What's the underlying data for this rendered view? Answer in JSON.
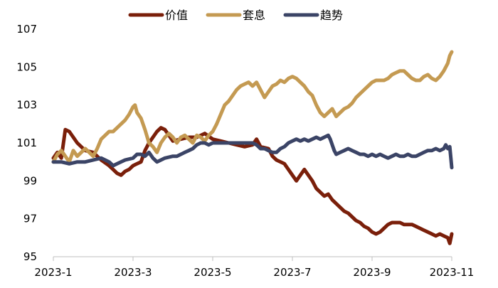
{
  "chart_data": {
    "type": "line",
    "title": "",
    "xlabel": "",
    "ylabel": "",
    "ylim": [
      95,
      107
    ],
    "yticks": [
      95,
      97,
      99,
      101,
      103,
      105,
      107
    ],
    "x_range": [
      0,
      10
    ],
    "x_ticks": [
      {
        "x": 0,
        "label": "2023-1"
      },
      {
        "x": 2,
        "label": "2023-3"
      },
      {
        "x": 4,
        "label": "2023-5"
      },
      {
        "x": 6,
        "label": "2023-7"
      },
      {
        "x": 8,
        "label": "2023-9"
      },
      {
        "x": 10,
        "label": "2023-11"
      }
    ],
    "legend_position": "top-center",
    "grid": false,
    "series": [
      {
        "name": "价值",
        "color": "#7a1f0a",
        "points": [
          [
            0,
            100.2
          ],
          [
            0.1,
            100.5
          ],
          [
            0.2,
            100.2
          ],
          [
            0.3,
            101.7
          ],
          [
            0.4,
            101.6
          ],
          [
            0.5,
            101.3
          ],
          [
            0.6,
            101.0
          ],
          [
            0.8,
            100.6
          ],
          [
            1.0,
            100.5
          ],
          [
            1.2,
            100.1
          ],
          [
            1.4,
            99.8
          ],
          [
            1.5,
            99.6
          ],
          [
            1.6,
            99.4
          ],
          [
            1.7,
            99.3
          ],
          [
            1.8,
            99.5
          ],
          [
            1.9,
            99.6
          ],
          [
            2.0,
            99.8
          ],
          [
            2.1,
            99.9
          ],
          [
            2.2,
            100.0
          ],
          [
            2.3,
            100.6
          ],
          [
            2.4,
            101.0
          ],
          [
            2.5,
            101.3
          ],
          [
            2.6,
            101.6
          ],
          [
            2.7,
            101.8
          ],
          [
            2.8,
            101.7
          ],
          [
            2.9,
            101.4
          ],
          [
            3.0,
            101.1
          ],
          [
            3.2,
            101.2
          ],
          [
            3.4,
            101.3
          ],
          [
            3.6,
            101.3
          ],
          [
            3.8,
            101.5
          ],
          [
            4.0,
            101.2
          ],
          [
            4.2,
            101.1
          ],
          [
            4.4,
            101.0
          ],
          [
            4.6,
            100.9
          ],
          [
            4.8,
            100.8
          ],
          [
            5.0,
            100.9
          ],
          [
            5.1,
            101.2
          ],
          [
            5.2,
            100.8
          ],
          [
            5.4,
            100.7
          ],
          [
            5.5,
            100.3
          ],
          [
            5.6,
            100.1
          ],
          [
            5.8,
            99.9
          ],
          [
            5.9,
            99.6
          ],
          [
            6.0,
            99.3
          ],
          [
            6.1,
            99.0
          ],
          [
            6.2,
            99.3
          ],
          [
            6.3,
            99.6
          ],
          [
            6.4,
            99.3
          ],
          [
            6.5,
            99.0
          ],
          [
            6.6,
            98.6
          ],
          [
            6.7,
            98.4
          ],
          [
            6.8,
            98.2
          ],
          [
            6.9,
            98.3
          ],
          [
            7.0,
            98.0
          ],
          [
            7.1,
            97.8
          ],
          [
            7.2,
            97.6
          ],
          [
            7.3,
            97.4
          ],
          [
            7.4,
            97.3
          ],
          [
            7.5,
            97.1
          ],
          [
            7.6,
            96.9
          ],
          [
            7.7,
            96.8
          ],
          [
            7.8,
            96.6
          ],
          [
            7.9,
            96.5
          ],
          [
            8.0,
            96.3
          ],
          [
            8.1,
            96.2
          ],
          [
            8.2,
            96.3
          ],
          [
            8.3,
            96.5
          ],
          [
            8.4,
            96.7
          ],
          [
            8.5,
            96.8
          ],
          [
            8.6,
            96.8
          ],
          [
            8.7,
            96.8
          ],
          [
            8.8,
            96.7
          ],
          [
            8.9,
            96.7
          ],
          [
            9.0,
            96.7
          ],
          [
            9.1,
            96.6
          ],
          [
            9.2,
            96.5
          ],
          [
            9.3,
            96.4
          ],
          [
            9.4,
            96.3
          ],
          [
            9.5,
            96.2
          ],
          [
            9.6,
            96.1
          ],
          [
            9.7,
            96.2
          ],
          [
            9.8,
            96.1
          ],
          [
            9.9,
            96.0
          ],
          [
            9.95,
            95.7
          ],
          [
            10.0,
            96.2
          ]
        ]
      },
      {
        "name": "套息",
        "color": "#c49a52",
        "points": [
          [
            0,
            100.0
          ],
          [
            0.1,
            100.4
          ],
          [
            0.2,
            100.6
          ],
          [
            0.3,
            100.3
          ],
          [
            0.4,
            100.0
          ],
          [
            0.5,
            100.6
          ],
          [
            0.6,
            100.3
          ],
          [
            0.7,
            100.5
          ],
          [
            0.8,
            100.7
          ],
          [
            0.9,
            100.5
          ],
          [
            1.0,
            100.3
          ],
          [
            1.1,
            100.7
          ],
          [
            1.2,
            101.2
          ],
          [
            1.3,
            101.4
          ],
          [
            1.4,
            101.6
          ],
          [
            1.5,
            101.6
          ],
          [
            1.6,
            101.8
          ],
          [
            1.7,
            102.0
          ],
          [
            1.8,
            102.2
          ],
          [
            1.9,
            102.5
          ],
          [
            2.0,
            102.9
          ],
          [
            2.05,
            103.0
          ],
          [
            2.1,
            102.6
          ],
          [
            2.2,
            102.3
          ],
          [
            2.3,
            101.7
          ],
          [
            2.4,
            101.0
          ],
          [
            2.5,
            100.8
          ],
          [
            2.6,
            100.5
          ],
          [
            2.7,
            101.0
          ],
          [
            2.8,
            101.3
          ],
          [
            2.9,
            101.5
          ],
          [
            3.0,
            101.3
          ],
          [
            3.1,
            101.0
          ],
          [
            3.2,
            101.3
          ],
          [
            3.3,
            101.4
          ],
          [
            3.4,
            101.2
          ],
          [
            3.5,
            101.0
          ],
          [
            3.6,
            101.4
          ],
          [
            3.7,
            101.3
          ],
          [
            3.8,
            101.1
          ],
          [
            3.9,
            101.4
          ],
          [
            4.0,
            101.6
          ],
          [
            4.1,
            102.0
          ],
          [
            4.2,
            102.5
          ],
          [
            4.3,
            103.0
          ],
          [
            4.4,
            103.2
          ],
          [
            4.5,
            103.5
          ],
          [
            4.6,
            103.8
          ],
          [
            4.7,
            104.0
          ],
          [
            4.8,
            104.1
          ],
          [
            4.9,
            104.2
          ],
          [
            5.0,
            104.0
          ],
          [
            5.1,
            104.2
          ],
          [
            5.2,
            103.8
          ],
          [
            5.3,
            103.4
          ],
          [
            5.4,
            103.7
          ],
          [
            5.5,
            104.0
          ],
          [
            5.6,
            104.1
          ],
          [
            5.7,
            104.3
          ],
          [
            5.8,
            104.2
          ],
          [
            5.9,
            104.4
          ],
          [
            6.0,
            104.5
          ],
          [
            6.1,
            104.4
          ],
          [
            6.2,
            104.2
          ],
          [
            6.3,
            104.0
          ],
          [
            6.4,
            103.7
          ],
          [
            6.5,
            103.5
          ],
          [
            6.6,
            103.0
          ],
          [
            6.7,
            102.6
          ],
          [
            6.8,
            102.4
          ],
          [
            6.9,
            102.6
          ],
          [
            7.0,
            102.8
          ],
          [
            7.1,
            102.4
          ],
          [
            7.2,
            102.6
          ],
          [
            7.3,
            102.8
          ],
          [
            7.4,
            102.9
          ],
          [
            7.5,
            103.1
          ],
          [
            7.6,
            103.4
          ],
          [
            7.7,
            103.6
          ],
          [
            7.8,
            103.8
          ],
          [
            7.9,
            104.0
          ],
          [
            8.0,
            104.2
          ],
          [
            8.1,
            104.3
          ],
          [
            8.2,
            104.3
          ],
          [
            8.3,
            104.3
          ],
          [
            8.4,
            104.4
          ],
          [
            8.5,
            104.6
          ],
          [
            8.6,
            104.7
          ],
          [
            8.7,
            104.8
          ],
          [
            8.8,
            104.8
          ],
          [
            8.9,
            104.6
          ],
          [
            9.0,
            104.4
          ],
          [
            9.1,
            104.3
          ],
          [
            9.2,
            104.3
          ],
          [
            9.3,
            104.5
          ],
          [
            9.4,
            104.6
          ],
          [
            9.5,
            104.4
          ],
          [
            9.6,
            104.3
          ],
          [
            9.7,
            104.5
          ],
          [
            9.8,
            104.8
          ],
          [
            9.9,
            105.2
          ],
          [
            9.95,
            105.6
          ],
          [
            10.0,
            105.8
          ]
        ]
      },
      {
        "name": "趋势",
        "color": "#3b4466",
        "points": [
          [
            0,
            100.0
          ],
          [
            0.2,
            100.0
          ],
          [
            0.4,
            99.9
          ],
          [
            0.6,
            100.0
          ],
          [
            0.8,
            100.0
          ],
          [
            1.0,
            100.1
          ],
          [
            1.2,
            100.2
          ],
          [
            1.4,
            100.0
          ],
          [
            1.5,
            99.8
          ],
          [
            1.6,
            99.9
          ],
          [
            1.8,
            100.1
          ],
          [
            2.0,
            100.2
          ],
          [
            2.1,
            100.4
          ],
          [
            2.2,
            100.4
          ],
          [
            2.3,
            100.3
          ],
          [
            2.4,
            100.5
          ],
          [
            2.5,
            100.2
          ],
          [
            2.6,
            100.0
          ],
          [
            2.7,
            100.1
          ],
          [
            2.8,
            100.2
          ],
          [
            3.0,
            100.3
          ],
          [
            3.1,
            100.3
          ],
          [
            3.2,
            100.4
          ],
          [
            3.3,
            100.5
          ],
          [
            3.4,
            100.6
          ],
          [
            3.5,
            100.7
          ],
          [
            3.6,
            100.9
          ],
          [
            3.7,
            101.0
          ],
          [
            3.8,
            101.0
          ],
          [
            3.9,
            100.9
          ],
          [
            4.0,
            101.0
          ],
          [
            4.2,
            101.0
          ],
          [
            4.4,
            101.0
          ],
          [
            4.5,
            101.0
          ],
          [
            4.6,
            101.0
          ],
          [
            4.8,
            101.0
          ],
          [
            5.0,
            101.0
          ],
          [
            5.1,
            100.9
          ],
          [
            5.2,
            100.7
          ],
          [
            5.3,
            100.7
          ],
          [
            5.4,
            100.6
          ],
          [
            5.5,
            100.5
          ],
          [
            5.6,
            100.5
          ],
          [
            5.7,
            100.7
          ],
          [
            5.8,
            100.8
          ],
          [
            5.9,
            101.0
          ],
          [
            6.0,
            101.1
          ],
          [
            6.1,
            101.2
          ],
          [
            6.2,
            101.1
          ],
          [
            6.3,
            101.2
          ],
          [
            6.4,
            101.1
          ],
          [
            6.5,
            101.2
          ],
          [
            6.6,
            101.3
          ],
          [
            6.7,
            101.2
          ],
          [
            6.8,
            101.3
          ],
          [
            6.9,
            101.4
          ],
          [
            6.95,
            101.2
          ],
          [
            7.0,
            100.9
          ],
          [
            7.05,
            100.6
          ],
          [
            7.1,
            100.4
          ],
          [
            7.2,
            100.5
          ],
          [
            7.3,
            100.6
          ],
          [
            7.4,
            100.7
          ],
          [
            7.5,
            100.6
          ],
          [
            7.6,
            100.5
          ],
          [
            7.7,
            100.4
          ],
          [
            7.8,
            100.4
          ],
          [
            7.9,
            100.3
          ],
          [
            8.0,
            100.4
          ],
          [
            8.1,
            100.3
          ],
          [
            8.2,
            100.4
          ],
          [
            8.3,
            100.3
          ],
          [
            8.4,
            100.2
          ],
          [
            8.5,
            100.3
          ],
          [
            8.6,
            100.4
          ],
          [
            8.7,
            100.3
          ],
          [
            8.8,
            100.3
          ],
          [
            8.9,
            100.4
          ],
          [
            9.0,
            100.3
          ],
          [
            9.1,
            100.3
          ],
          [
            9.2,
            100.4
          ],
          [
            9.3,
            100.5
          ],
          [
            9.4,
            100.6
          ],
          [
            9.5,
            100.6
          ],
          [
            9.6,
            100.7
          ],
          [
            9.7,
            100.6
          ],
          [
            9.8,
            100.7
          ],
          [
            9.85,
            100.9
          ],
          [
            9.9,
            100.7
          ],
          [
            9.95,
            100.8
          ],
          [
            10.0,
            99.7
          ]
        ]
      }
    ]
  }
}
